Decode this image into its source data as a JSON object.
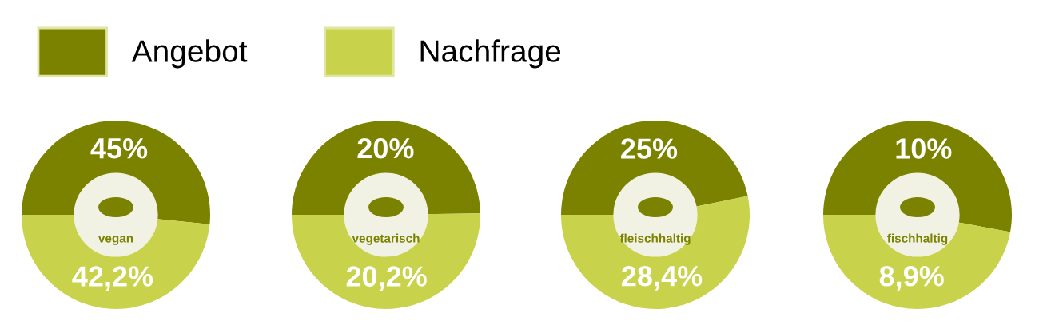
{
  "chart_data": [
    {
      "type": "donut",
      "title": "vegan",
      "categories": [
        "Angebot",
        "Nachfrage"
      ],
      "values": [
        45,
        42.2
      ],
      "value_labels": [
        "45%",
        "42,2%"
      ],
      "colors": [
        "#7a8200",
        "#c8d24a"
      ],
      "legend": "top"
    },
    {
      "type": "donut",
      "title": "vegetarisch",
      "categories": [
        null,
        null
      ],
      "values": [
        20,
        20.2
      ],
      "value_labels": [
        "20%",
        "20,2%"
      ],
      "colors": [
        "#7a8200",
        "#c8d24a"
      ]
    },
    {
      "type": "donut",
      "title": "fleischhaltig",
      "categories": [
        null,
        null
      ],
      "values": [
        25,
        28.4
      ],
      "value_labels": [
        "25%",
        "28,4%"
      ],
      "colors": [
        "#7a8200",
        "#c8d24a"
      ]
    },
    {
      "type": "donut",
      "title": "fischhaltig",
      "categories": [
        null,
        null
      ],
      "values": [
        10,
        8.9
      ],
      "value_labels": [
        "10%",
        "8,9%"
      ],
      "colors": [
        "#7a8200",
        "#c8d24a"
      ]
    }
  ]
}
